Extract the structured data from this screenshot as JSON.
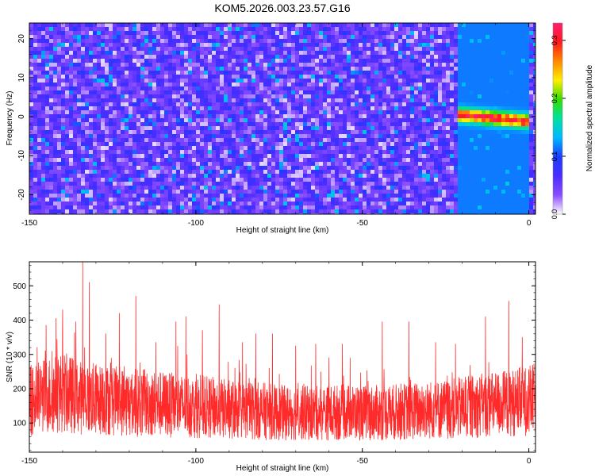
{
  "title": "KOM5.2026.003.23.57.G16",
  "colors": {
    "line_series": "#ff2a2a",
    "colormap": [
      "#ffffff",
      "#8a4dff",
      "#4b2cff",
      "#1a3cff",
      "#00b8ff",
      "#00e0a0",
      "#33dd00",
      "#ffee00",
      "#ff8800",
      "#ff1a1a",
      "#ff1f6e"
    ]
  },
  "chart_data": [
    {
      "type": "heatmap",
      "xlabel": "Height of straight line (km)",
      "ylabel": "Frequency (Hz)",
      "xlim": [
        -150,
        2
      ],
      "ylim": [
        -25,
        24
      ],
      "x_ticks": [
        "-150",
        "-100",
        "-50",
        "0"
      ],
      "y_ticks": [
        "20",
        "10",
        "0",
        "-10",
        "-20"
      ],
      "colorbar": {
        "label": "Normalized spectral amplitude",
        "range": [
          0.0,
          0.33
        ],
        "ticks": [
          "0.0",
          "0.1",
          "0.2",
          "0.3"
        ]
      },
      "description": "noise speckle dominated by low amplitude (purple/blue), with a high-amplitude streak near 0 Hz between -22 and 0 km",
      "features": [
        {
          "x_range_km": [
            -22,
            0
          ],
          "freq_hz": 0,
          "peak_amplitude": 0.32
        }
      ]
    },
    {
      "type": "line",
      "xlabel": "Height of straight line (km)",
      "ylabel": "SNR (10 * v/v)",
      "xlim": [
        -150,
        2
      ],
      "ylim": [
        15,
        570
      ],
      "x_ticks": [
        "-150",
        "-100",
        "-50",
        "0"
      ],
      "y_ticks": [
        "500",
        "400",
        "300",
        "200",
        "100"
      ],
      "series": [
        {
          "x": [
            -150,
            -145,
            -140,
            -135,
            -130,
            -125,
            -120,
            -115,
            -110,
            -105,
            -100,
            -95,
            -90,
            -85,
            -80,
            -75,
            -70,
            -65,
            -60,
            -55,
            -50,
            -45,
            -40,
            -35,
            -30,
            -25,
            -20,
            -15,
            -10,
            -5,
            0,
            2
          ],
          "mean": [
            165,
            180,
            190,
            175,
            170,
            165,
            160,
            158,
            155,
            150,
            148,
            145,
            140,
            138,
            135,
            130,
            130,
            128,
            130,
            132,
            130,
            130,
            132,
            135,
            138,
            140,
            145,
            150,
            155,
            160,
            165,
            170
          ]
        }
      ],
      "peaks": [
        {
          "x": -148,
          "y": 265
        },
        {
          "x": -145,
          "y": 385
        },
        {
          "x": -142,
          "y": 405
        },
        {
          "x": -140,
          "y": 430
        },
        {
          "x": -136,
          "y": 395
        },
        {
          "x": -134,
          "y": 570
        },
        {
          "x": -132,
          "y": 510
        },
        {
          "x": -127,
          "y": 360
        },
        {
          "x": -123,
          "y": 420
        },
        {
          "x": -118,
          "y": 470
        },
        {
          "x": -112,
          "y": 335
        },
        {
          "x": -106,
          "y": 395
        },
        {
          "x": -103,
          "y": 410
        },
        {
          "x": -98,
          "y": 370
        },
        {
          "x": -93,
          "y": 445
        },
        {
          "x": -86,
          "y": 335
        },
        {
          "x": -82,
          "y": 360
        },
        {
          "x": -77,
          "y": 360
        },
        {
          "x": -70,
          "y": 325
        },
        {
          "x": -64,
          "y": 330
        },
        {
          "x": -60,
          "y": 290
        },
        {
          "x": -56,
          "y": 330
        },
        {
          "x": -44,
          "y": 395
        },
        {
          "x": -36,
          "y": 395
        },
        {
          "x": -28,
          "y": 335
        },
        {
          "x": -22,
          "y": 330
        },
        {
          "x": -13,
          "y": 410
        },
        {
          "x": -6,
          "y": 455
        },
        {
          "x": -2,
          "y": 350
        }
      ]
    }
  ]
}
